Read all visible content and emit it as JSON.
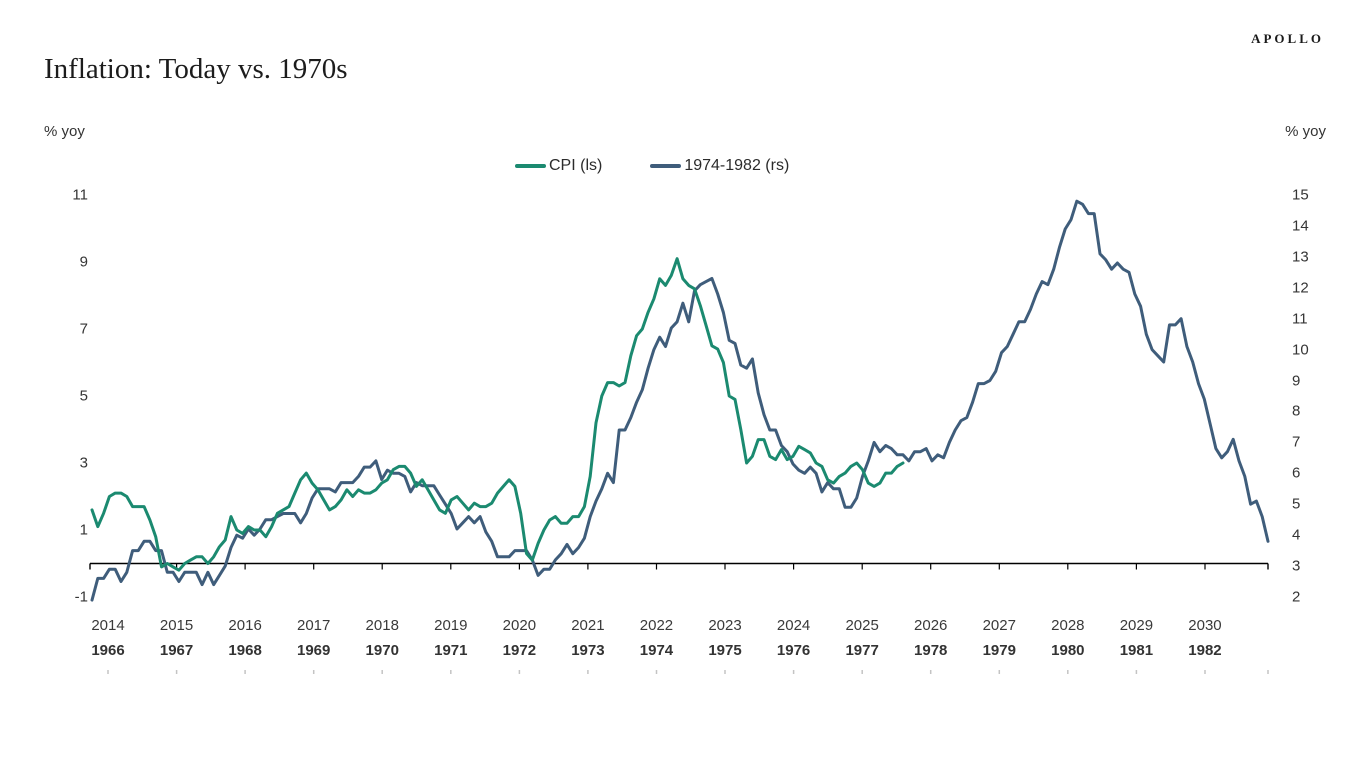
{
  "brand": "APOLLO",
  "title": "Inflation: Today vs. 1970s",
  "axis_unit_left": "% yoy",
  "axis_unit_right": "% yoy",
  "legend": {
    "items": [
      "CPI (ls)",
      "1974-1982 (rs)"
    ]
  },
  "colors": {
    "cpi_line": "#1b8a70",
    "seventies_line": "#3f5d7b",
    "axis_line": "#000000",
    "minor_tick": "#c4c4c4",
    "text": "#3a3a3a"
  },
  "chart_data": {
    "type": "line",
    "title": "Inflation: Today vs. 1970s",
    "legend_position": "top-center",
    "grid": false,
    "x_axis": {
      "top_row_years": [
        "2014",
        "2015",
        "2016",
        "2017",
        "2018",
        "2019",
        "2020",
        "2021",
        "2022",
        "2023",
        "2024",
        "2025",
        "2026",
        "2027",
        "2028",
        "2029",
        "2030"
      ],
      "bottom_row_years": [
        "1966",
        "1967",
        "1968",
        "1969",
        "1970",
        "1971",
        "1972",
        "1973",
        "1974",
        "1975",
        "1976",
        "1977",
        "1978",
        "1979",
        "1980",
        "1981",
        "1982"
      ]
    },
    "y_left": {
      "label": "% yoy",
      "ticks": [
        11,
        9,
        7,
        5,
        3,
        1,
        -1
      ],
      "min": -1,
      "max": 11
    },
    "y_right": {
      "label": "% yoy",
      "ticks": [
        15,
        14,
        13,
        12,
        11,
        10,
        9,
        8,
        7,
        6,
        5,
        4,
        3,
        2
      ],
      "min": 2,
      "max": 15
    },
    "series": [
      {
        "name": "CPI (ls)",
        "axis": "left",
        "color": "#1b8a70",
        "start": "Jan 2014",
        "end": "Sep 2025",
        "frequency": "monthly",
        "values": [
          1.6,
          1.1,
          1.5,
          2.0,
          2.1,
          2.1,
          2.0,
          1.7,
          1.7,
          1.7,
          1.3,
          0.8,
          -0.1,
          0.0,
          -0.1,
          -0.2,
          0.0,
          0.1,
          0.2,
          0.2,
          0.0,
          0.2,
          0.5,
          0.7,
          1.4,
          1.0,
          0.9,
          1.1,
          1.0,
          1.0,
          0.8,
          1.1,
          1.5,
          1.6,
          1.7,
          2.1,
          2.5,
          2.7,
          2.4,
          2.2,
          1.9,
          1.6,
          1.7,
          1.9,
          2.2,
          2.0,
          2.2,
          2.1,
          2.1,
          2.2,
          2.4,
          2.5,
          2.8,
          2.9,
          2.9,
          2.7,
          2.3,
          2.5,
          2.2,
          1.9,
          1.6,
          1.5,
          1.9,
          2.0,
          1.8,
          1.6,
          1.8,
          1.7,
          1.7,
          1.8,
          2.1,
          2.3,
          2.5,
          2.3,
          1.5,
          0.3,
          0.1,
          0.6,
          1.0,
          1.3,
          1.4,
          1.2,
          1.2,
          1.4,
          1.4,
          1.7,
          2.6,
          4.2,
          5.0,
          5.4,
          5.4,
          5.3,
          5.4,
          6.2,
          6.8,
          7.0,
          7.5,
          7.9,
          8.5,
          8.3,
          8.6,
          9.1,
          8.5,
          8.3,
          8.2,
          7.7,
          7.1,
          6.5,
          6.4,
          6.0,
          5.0,
          4.9,
          4.0,
          3.0,
          3.2,
          3.7,
          3.7,
          3.2,
          3.1,
          3.4,
          3.1,
          3.2,
          3.5,
          3.4,
          3.3,
          3.0,
          2.9,
          2.5,
          2.4,
          2.6,
          2.7,
          2.9,
          3.0,
          2.8,
          2.4,
          2.3,
          2.4,
          2.7,
          2.7,
          2.9,
          3.0
        ]
      },
      {
        "name": "1974-1982 (rs)",
        "axis": "right",
        "color": "#3f5d7b",
        "start": "Jan 1966",
        "end": "Dec 1982",
        "frequency": "monthly",
        "values": [
          1.9,
          2.6,
          2.6,
          2.9,
          2.9,
          2.5,
          2.8,
          3.5,
          3.5,
          3.8,
          3.8,
          3.5,
          3.5,
          2.8,
          2.8,
          2.5,
          2.8,
          2.8,
          2.8,
          2.4,
          2.8,
          2.4,
          2.7,
          3.0,
          3.6,
          4.0,
          3.9,
          4.2,
          4.0,
          4.2,
          4.5,
          4.5,
          4.6,
          4.7,
          4.7,
          4.7,
          4.4,
          4.7,
          5.2,
          5.5,
          5.5,
          5.5,
          5.4,
          5.7,
          5.7,
          5.7,
          5.9,
          6.2,
          6.2,
          6.4,
          5.8,
          6.1,
          6.0,
          6.0,
          5.9,
          5.4,
          5.7,
          5.6,
          5.6,
          5.6,
          5.3,
          5.0,
          4.7,
          4.2,
          4.4,
          4.6,
          4.4,
          4.6,
          4.1,
          3.8,
          3.3,
          3.3,
          3.3,
          3.5,
          3.5,
          3.5,
          3.2,
          2.7,
          2.9,
          2.9,
          3.2,
          3.4,
          3.7,
          3.4,
          3.6,
          3.9,
          4.6,
          5.1,
          5.5,
          6.0,
          5.7,
          7.4,
          7.4,
          7.8,
          8.3,
          8.7,
          9.4,
          10.0,
          10.4,
          10.1,
          10.7,
          10.9,
          11.5,
          10.9,
          11.9,
          12.1,
          12.2,
          12.3,
          11.8,
          11.2,
          10.3,
          10.2,
          9.5,
          9.4,
          9.7,
          8.6,
          7.9,
          7.4,
          7.4,
          6.9,
          6.7,
          6.3,
          6.1,
          6.0,
          6.2,
          6.0,
          5.4,
          5.7,
          5.5,
          5.5,
          4.9,
          4.9,
          5.2,
          5.9,
          6.4,
          7.0,
          6.7,
          6.9,
          6.8,
          6.6,
          6.6,
          6.4,
          6.7,
          6.7,
          6.8,
          6.4,
          6.6,
          6.5,
          7.0,
          7.4,
          7.7,
          7.8,
          8.3,
          8.9,
          8.9,
          9.0,
          9.3,
          9.9,
          10.1,
          10.5,
          10.9,
          10.9,
          11.3,
          11.8,
          12.2,
          12.1,
          12.6,
          13.3,
          13.9,
          14.2,
          14.8,
          14.7,
          14.4,
          14.4,
          13.1,
          12.9,
          12.6,
          12.8,
          12.6,
          12.5,
          11.8,
          11.4,
          10.5,
          10.0,
          9.8,
          9.6,
          10.8,
          10.8,
          11.0,
          10.1,
          9.6,
          8.9,
          8.4,
          7.6,
          6.8,
          6.5,
          6.7,
          7.1,
          6.4,
          5.9,
          5.0,
          5.1,
          4.6,
          3.8
        ]
      }
    ]
  }
}
